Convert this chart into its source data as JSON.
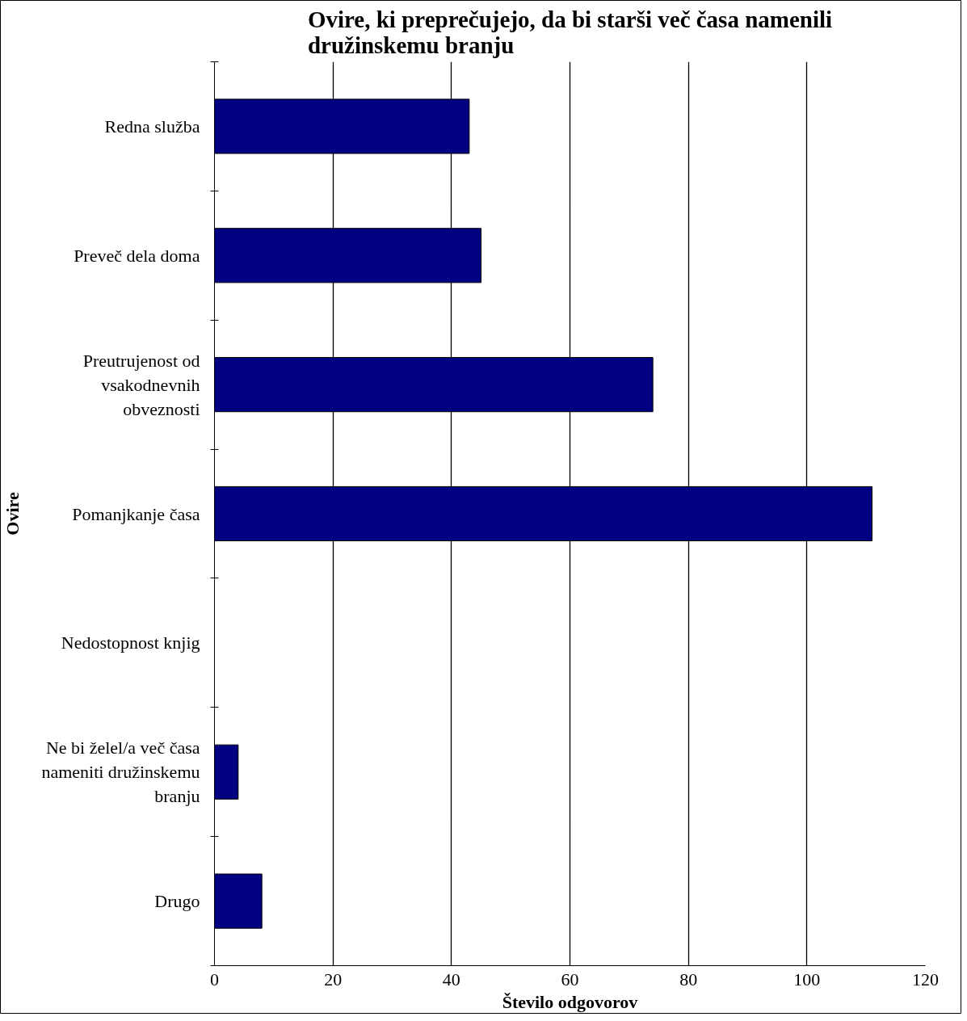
{
  "chart_data": {
    "type": "bar",
    "orientation": "horizontal",
    "title": "Ovire, ki preprečujejo, da bi starši več časa namenili družinskemu branju",
    "xlabel": "Število odgovorov",
    "ylabel": "Ovire",
    "categories": [
      "Redna služba",
      "Preveč dela doma",
      "Preutrujenost od vsakodnevnih obveznosti",
      "Pomanjkanje časa",
      "Nedostopnost knjig",
      "Ne bi želel/a več časa nameniti družinskemu branju",
      "Drugo"
    ],
    "values": [
      43,
      45,
      74,
      111,
      0,
      4,
      8
    ],
    "color": "#000080",
    "xlim": [
      0,
      120
    ],
    "xticks": [
      0,
      20,
      40,
      60,
      80,
      100,
      120
    ],
    "grid": "x"
  }
}
